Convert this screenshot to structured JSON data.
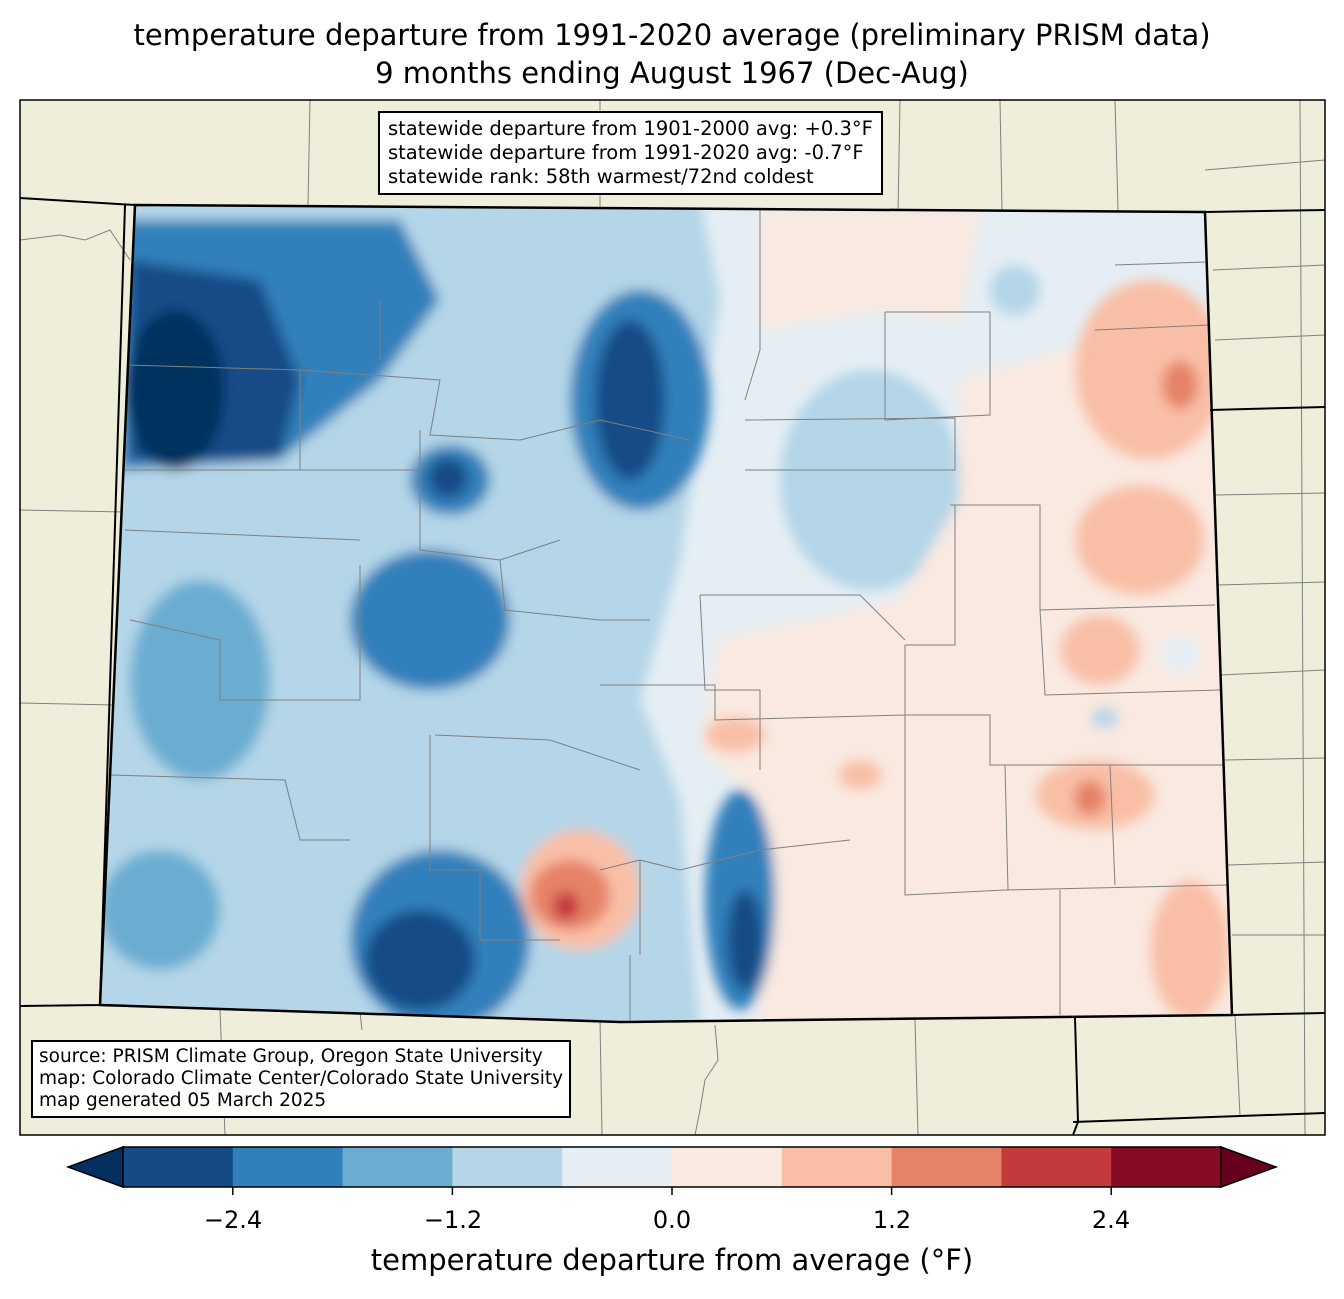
{
  "title": {
    "line1": "temperature departure from 1991-2020 average (preliminary PRISM data)",
    "line2": "9 months ending August 1967 (Dec-Aug)"
  },
  "stats_box": {
    "line1": "statewide departure from 1901-2000 avg: +0.3°F",
    "line2": "statewide departure from 1991-2020 avg: -0.7°F",
    "line3": "statewide rank: 58th warmest/72nd coldest"
  },
  "source_box": {
    "line1": "source: PRISM Climate Group, Oregon State University",
    "line2": "map: Colorado Climate Center/Colorado State University",
    "line3": "map generated 05 March 2025"
  },
  "colorbar": {
    "label": "temperature departure from average (°F)",
    "levels": [
      -3.0,
      -2.4,
      -1.8,
      -1.2,
      -0.6,
      0.0,
      0.6,
      1.2,
      1.8,
      2.4,
      3.0
    ],
    "colors": [
      "#144b86",
      "#3280bb",
      "#6aadd1",
      "#b4d6e8",
      "#e5eef4",
      "#f9e9e0",
      "#f9bfa6",
      "#e58268",
      "#c4393c",
      "#880b26"
    ],
    "under_color": "#053061",
    "over_color": "#67001f",
    "ticks": [
      "−2.4",
      "−1.2",
      "0.0",
      "1.2",
      "2.4"
    ]
  },
  "map": {
    "land_color": "#efeedb",
    "county_line_color": "#808080"
  }
}
